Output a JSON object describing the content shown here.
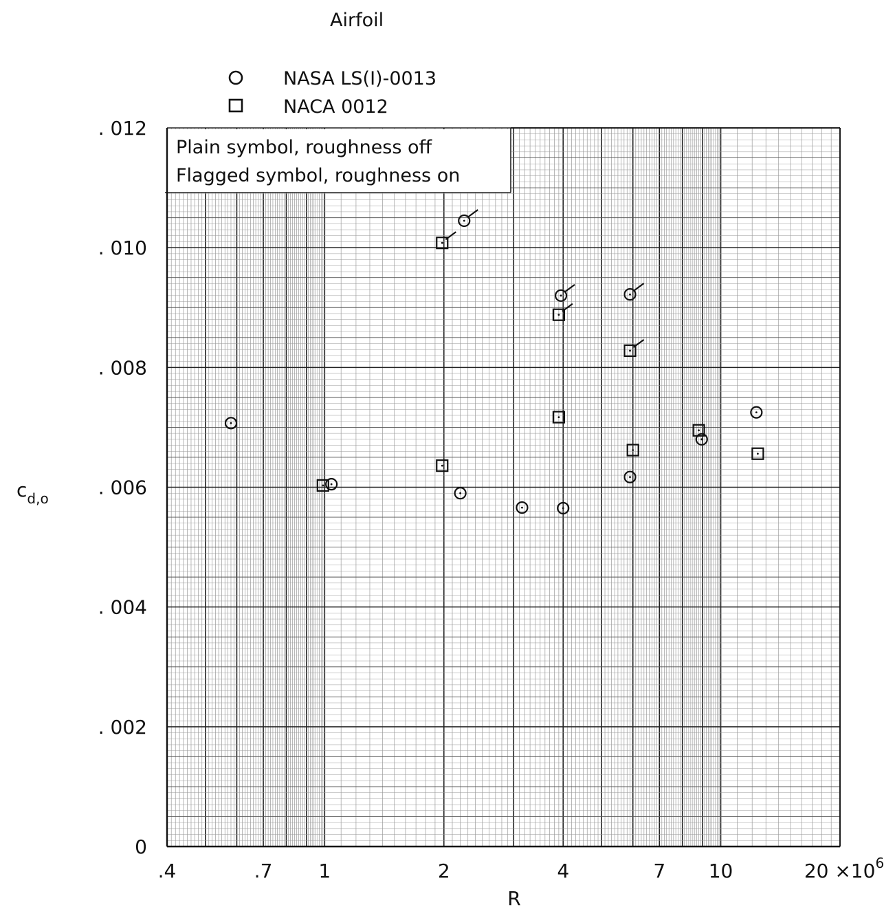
{
  "chart_data": {
    "type": "scatter",
    "title": "",
    "legend_title": "Airfoil",
    "legend_position": "top-left",
    "notes": [
      "Plain symbol, roughness off",
      "Flagged symbol, roughness on"
    ],
    "xlabel": "R",
    "ylabel": "c",
    "ylabel_subscript": "d,o",
    "x_scale": "log",
    "xlim": [
      400000,
      20000000
    ],
    "ylim": [
      0,
      0.012
    ],
    "grid": true,
    "x_tick_labels": [
      {
        "value": 400000,
        "label": ".4"
      },
      {
        "value": 700000,
        "label": ".7"
      },
      {
        "value": 1000000,
        "label": "1"
      },
      {
        "value": 2000000,
        "label": "2"
      },
      {
        "value": 4000000,
        "label": "4"
      },
      {
        "value": 7000000,
        "label": "7"
      },
      {
        "value": 10000000,
        "label": "10"
      }
    ],
    "x_tick_last": {
      "value": 20000000,
      "base": "20 ×10",
      "exponent": "6"
    },
    "y_tick_labels": [
      {
        "value": 0,
        "label": "0"
      },
      {
        "value": 0.002,
        "label": ". 002"
      },
      {
        "value": 0.004,
        "label": ". 004"
      },
      {
        "value": 0.006,
        "label": ". 006"
      },
      {
        "value": 0.008,
        "label": ". 008"
      },
      {
        "value": 0.01,
        "label": ". 010"
      },
      {
        "value": 0.012,
        "label": ". 012"
      }
    ],
    "series": [
      {
        "name": "NASA LS(I)-0013",
        "marker": "circle",
        "points": [
          {
            "x": 580000,
            "y": 0.00707,
            "flag": false
          },
          {
            "x": 1040000,
            "y": 0.00605,
            "flag": false
          },
          {
            "x": 2200000,
            "y": 0.0059,
            "flag": false
          },
          {
            "x": 3150000,
            "y": 0.00566,
            "flag": false
          },
          {
            "x": 4000000,
            "y": 0.00565,
            "flag": false
          },
          {
            "x": 5900000,
            "y": 0.00617,
            "flag": false
          },
          {
            "x": 8950000,
            "y": 0.0068,
            "flag": false
          },
          {
            "x": 12300000,
            "y": 0.00725,
            "flag": false
          },
          {
            "x": 2250000,
            "y": 0.01045,
            "flag": true
          },
          {
            "x": 3950000,
            "y": 0.0092,
            "flag": true
          },
          {
            "x": 5900000,
            "y": 0.00922,
            "flag": true
          }
        ]
      },
      {
        "name": "NACA 0012",
        "marker": "square",
        "points": [
          {
            "x": 990000,
            "y": 0.00603,
            "flag": false
          },
          {
            "x": 1980000,
            "y": 0.00636,
            "flag": false
          },
          {
            "x": 3900000,
            "y": 0.00717,
            "flag": false
          },
          {
            "x": 6000000,
            "y": 0.00662,
            "flag": false
          },
          {
            "x": 8800000,
            "y": 0.00695,
            "flag": false
          },
          {
            "x": 12400000,
            "y": 0.00656,
            "flag": false
          },
          {
            "x": 1980000,
            "y": 0.01008,
            "flag": true
          },
          {
            "x": 3900000,
            "y": 0.00888,
            "flag": true
          },
          {
            "x": 5900000,
            "y": 0.00828,
            "flag": true
          }
        ]
      }
    ]
  }
}
